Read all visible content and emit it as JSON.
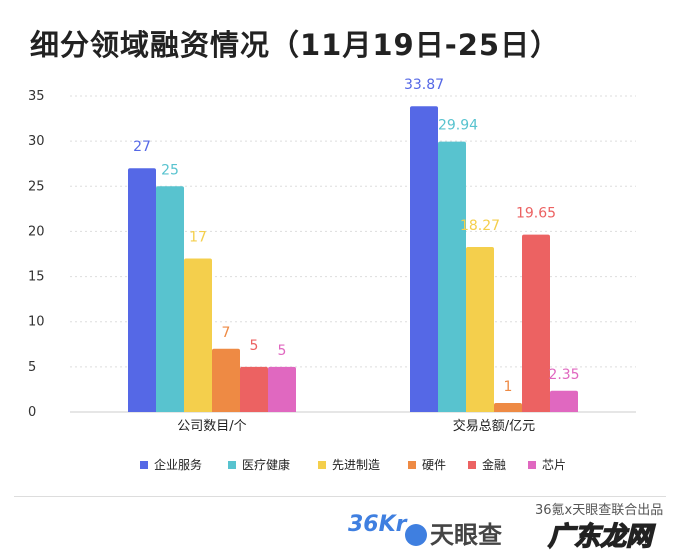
{
  "title": "细分领域融资情况（11月19日-25日）",
  "chart_data": {
    "type": "bar",
    "title": "细分领域融资情况（11月19日-25日）",
    "categories": [
      "公司数目/个",
      "交易总额/亿元"
    ],
    "series": [
      {
        "name": "企业服务",
        "values": [
          27,
          33.87
        ],
        "labels": [
          "27",
          "33.87"
        ],
        "color": "#5568e6"
      },
      {
        "name": "医疗健康",
        "values": [
          25,
          29.94
        ],
        "labels": [
          "25",
          "29.94"
        ],
        "color": "#58c3cf"
      },
      {
        "name": "先进制造",
        "values": [
          17,
          18.27
        ],
        "labels": [
          "17",
          "18.27"
        ],
        "color": "#f4cf4c"
      },
      {
        "name": "硬件",
        "values": [
          7,
          1
        ],
        "labels": [
          "7",
          "1"
        ],
        "color": "#ee8a44"
      },
      {
        "name": "金融",
        "values": [
          5,
          19.65
        ],
        "labels": [
          "5",
          "19.65"
        ],
        "color": "#ec6262"
      },
      {
        "name": "芯片",
        "values": [
          5,
          2.35
        ],
        "labels": [
          "5",
          "2.35"
        ],
        "color": "#e068c0"
      }
    ],
    "yticks": [
      "0",
      "5",
      "10",
      "15",
      "20",
      "25",
      "30",
      "35"
    ],
    "ylim": [
      0,
      35
    ],
    "grid": true,
    "legend": "bottom"
  },
  "footer": {
    "logo_36kr": "36Kr",
    "logo_tianyancha": "天眼查",
    "credit": "36氪x天眼查联合出品",
    "watermark": "广东龙网"
  }
}
